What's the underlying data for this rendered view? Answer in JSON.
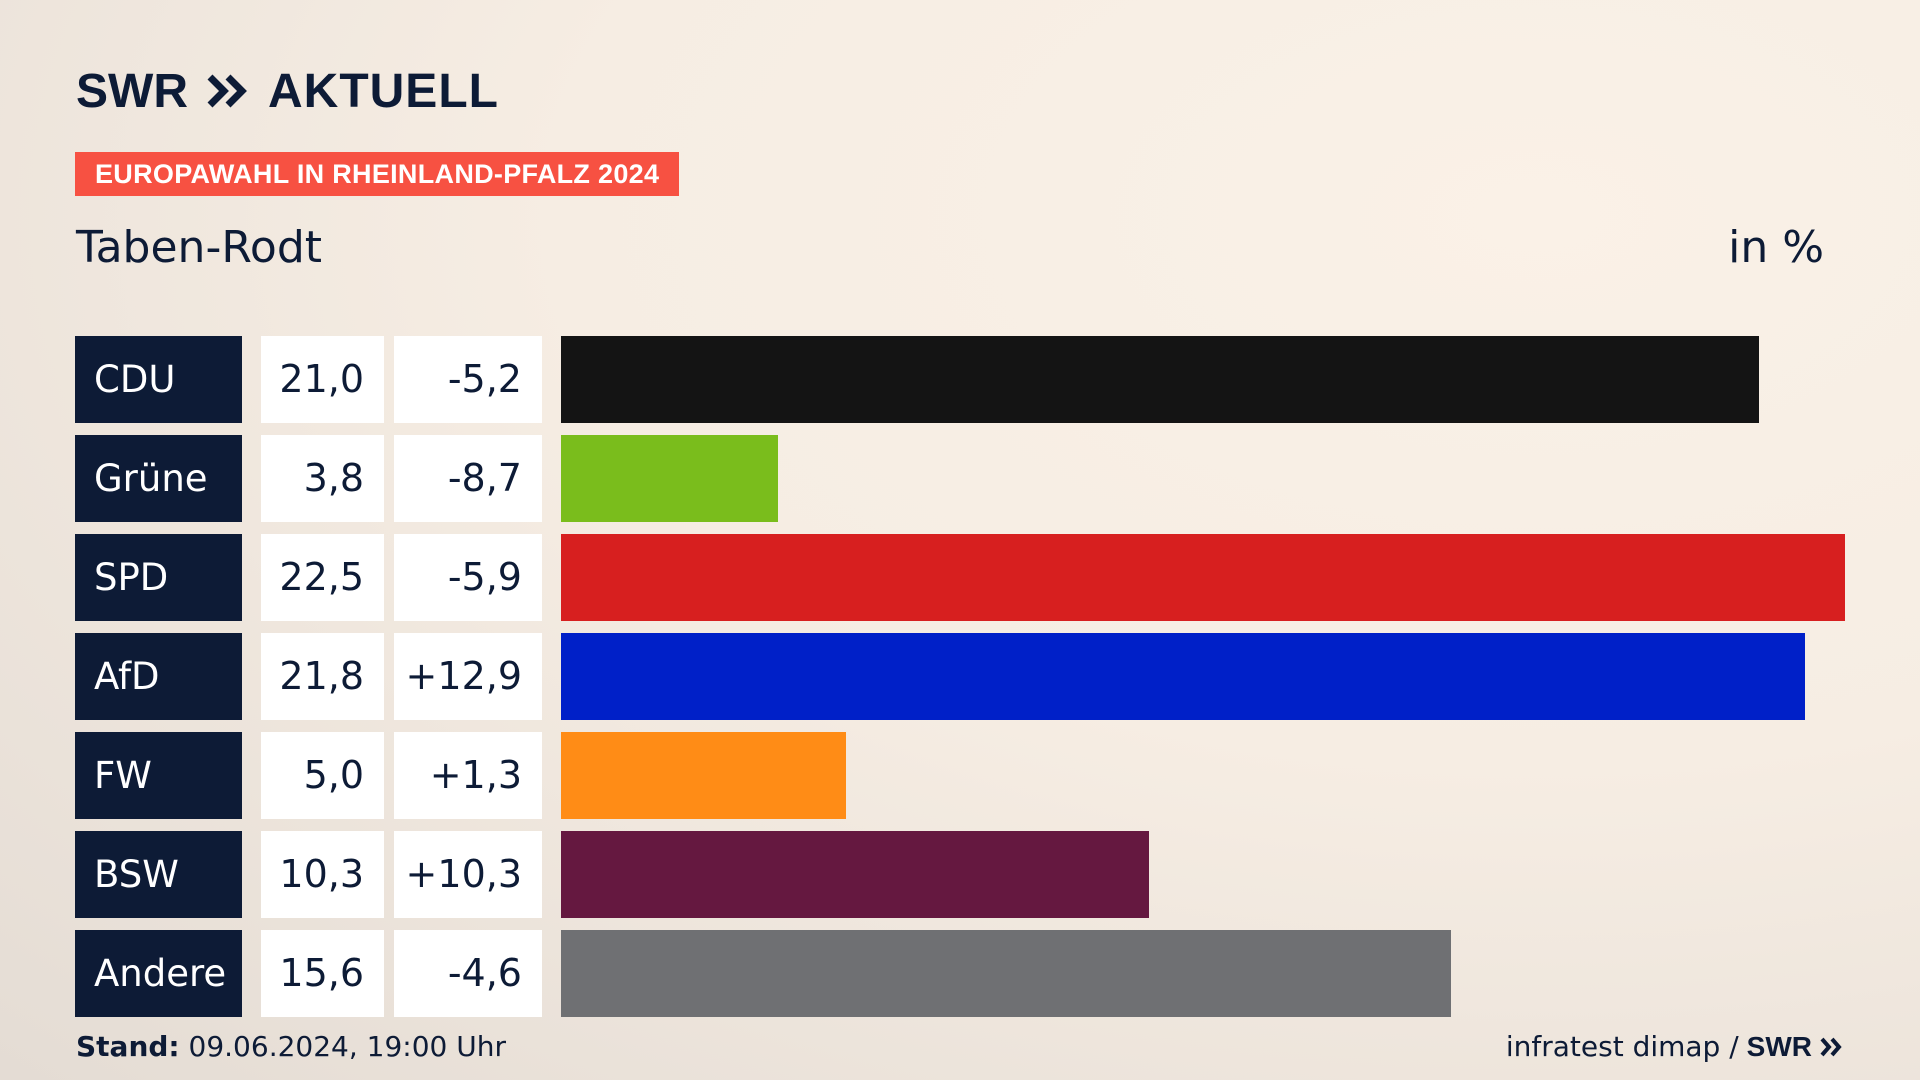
{
  "header": {
    "logo_brand": "SWR",
    "logo_product": "AKTUELL",
    "tag": "EUROPAWAHL IN RHEINLAND-PFALZ 2024",
    "place": "Taben-Rodt",
    "unit": "in %"
  },
  "colors": {
    "navy": "#0d1b36",
    "tag_red": "#f75142"
  },
  "chart_data": {
    "type": "bar",
    "orientation": "horizontal",
    "categories": [
      "CDU",
      "Grüne",
      "SPD",
      "AfD",
      "FW",
      "BSW",
      "Andere"
    ],
    "values": [
      21.0,
      3.8,
      22.5,
      21.8,
      5.0,
      10.3,
      15.6
    ],
    "value_labels": [
      "21,0",
      "3,8",
      "22,5",
      "21,8",
      "5,0",
      "10,3",
      "15,6"
    ],
    "change_labels": [
      "-5,2",
      "-8,7",
      "-5,9",
      "+12,9",
      "+1,3",
      "+10,3",
      "-4,6"
    ],
    "changes": [
      -5.2,
      -8.7,
      -5.9,
      12.9,
      1.3,
      10.3,
      -4.6
    ],
    "bar_colors": [
      "#141414",
      "#7abd1c",
      "#d71f1f",
      "#0020c8",
      "#ff8c16",
      "#651840",
      "#6f7073"
    ],
    "xlim": [
      0,
      22.5
    ],
    "grid": false
  },
  "footer": {
    "stand_label": "Stand:",
    "stand_value": "09.06.2024, 19:00 Uhr",
    "source_text": "infratest dimap /",
    "source_brand": "SWR"
  }
}
